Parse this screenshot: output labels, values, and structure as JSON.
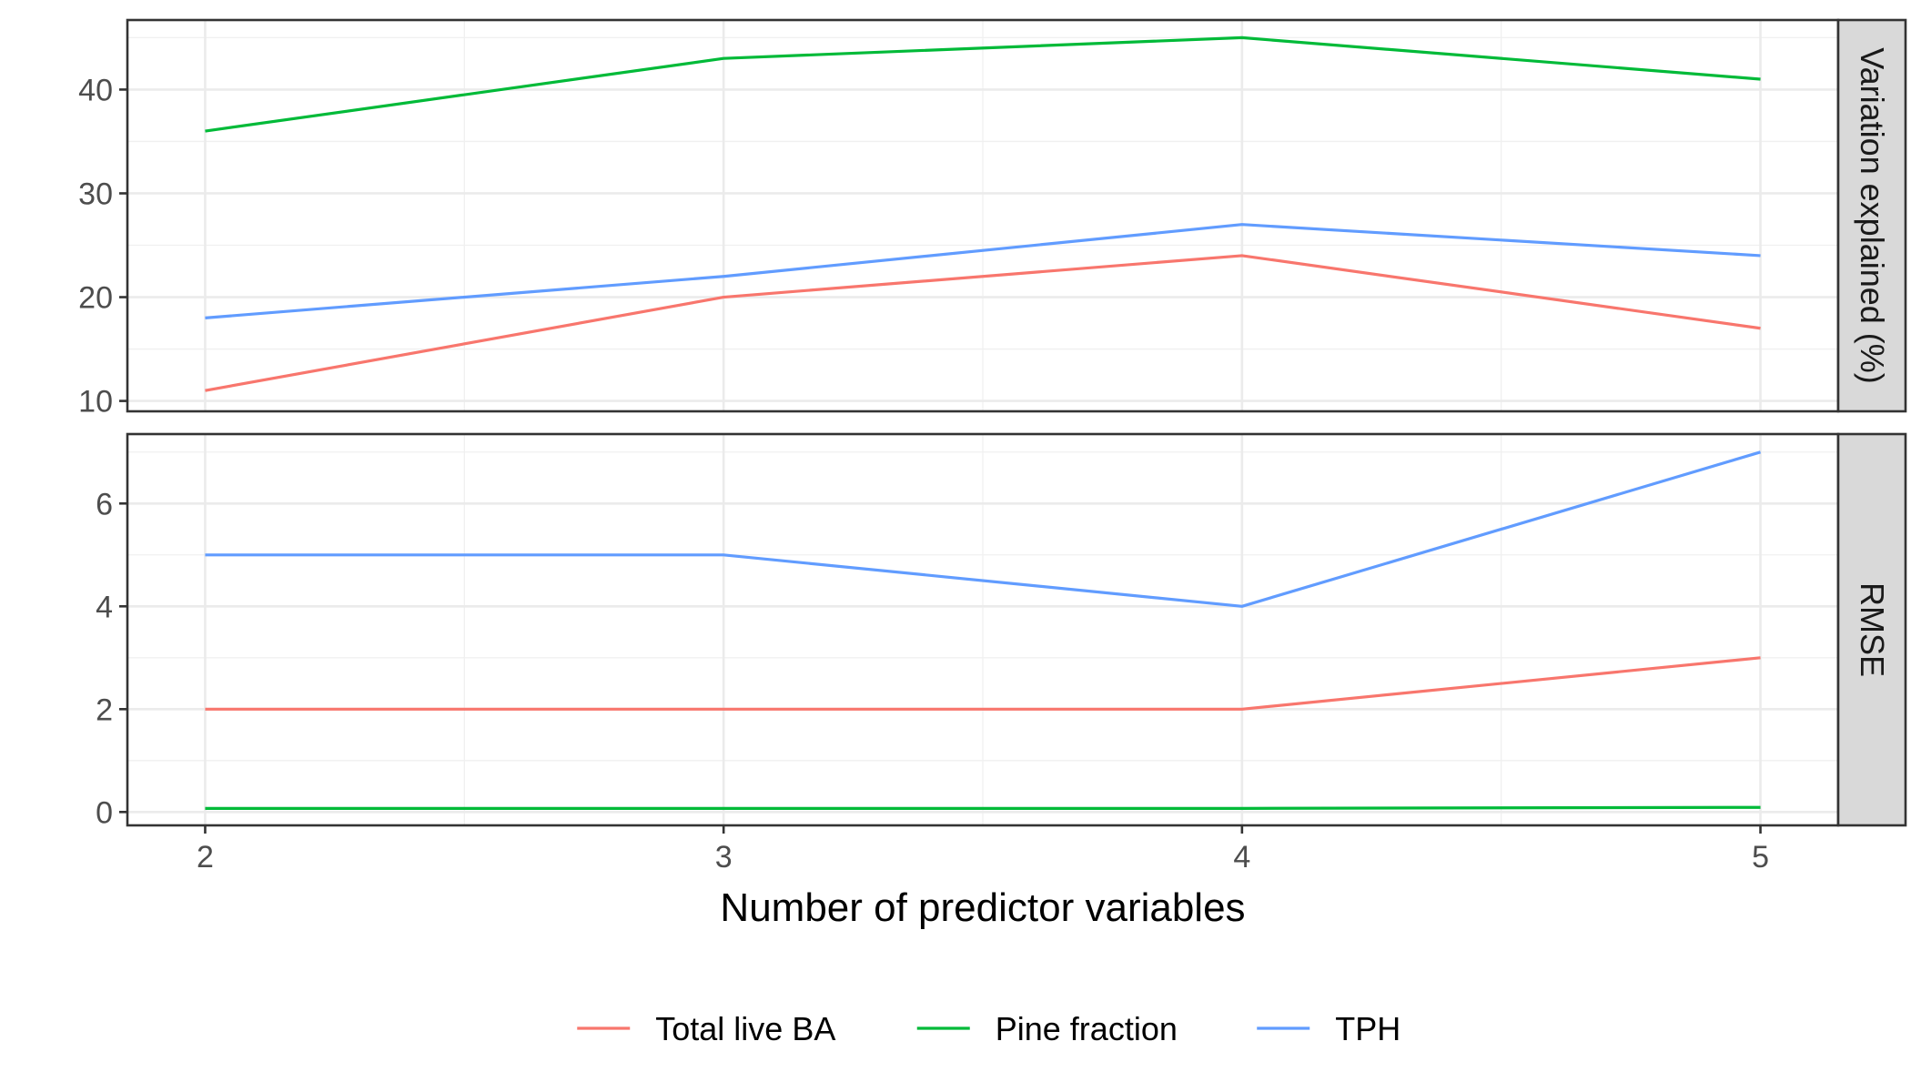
{
  "chart_data": {
    "type": "line",
    "xlabel": "Number of predictor variables",
    "x": [
      2,
      3,
      4,
      5
    ],
    "x_ticks": [
      "2",
      "3",
      "4",
      "5"
    ],
    "xlim": [
      1.85,
      5.15
    ],
    "legend_position": "bottom",
    "series_meta": [
      {
        "name": "Total live BA",
        "color": "#F8766D"
      },
      {
        "name": "Pine fraction",
        "color": "#00BA38"
      },
      {
        "name": "TPH",
        "color": "#619CFF"
      }
    ],
    "panels": [
      {
        "strip": "Variation explained (%)",
        "ylim": [
          9,
          46.7
        ],
        "y_ticks": [
          10,
          20,
          30,
          40
        ],
        "y_tick_labels": [
          "10",
          "20",
          "30",
          "40"
        ],
        "y_minor": [
          15,
          25,
          35,
          45
        ],
        "series": [
          {
            "name": "Total live BA",
            "values": [
              11,
              20,
              24,
              17
            ]
          },
          {
            "name": "Pine fraction",
            "values": [
              36,
              43,
              45,
              41
            ]
          },
          {
            "name": "TPH",
            "values": [
              18,
              22,
              27,
              24
            ]
          }
        ]
      },
      {
        "strip": "RMSE",
        "ylim": [
          -0.26,
          7.35
        ],
        "y_ticks": [
          0,
          2,
          4,
          6
        ],
        "y_tick_labels": [
          "0",
          "2",
          "4",
          "6"
        ],
        "y_minor": [
          1,
          3,
          5,
          7
        ],
        "series": [
          {
            "name": "Total live BA",
            "values": [
              2,
              2,
              2,
              3
            ]
          },
          {
            "name": "Pine fraction",
            "values": [
              0.07,
              0.07,
              0.07,
              0.09
            ]
          },
          {
            "name": "TPH",
            "values": [
              5,
              5,
              4,
              7
            ]
          }
        ]
      }
    ]
  }
}
